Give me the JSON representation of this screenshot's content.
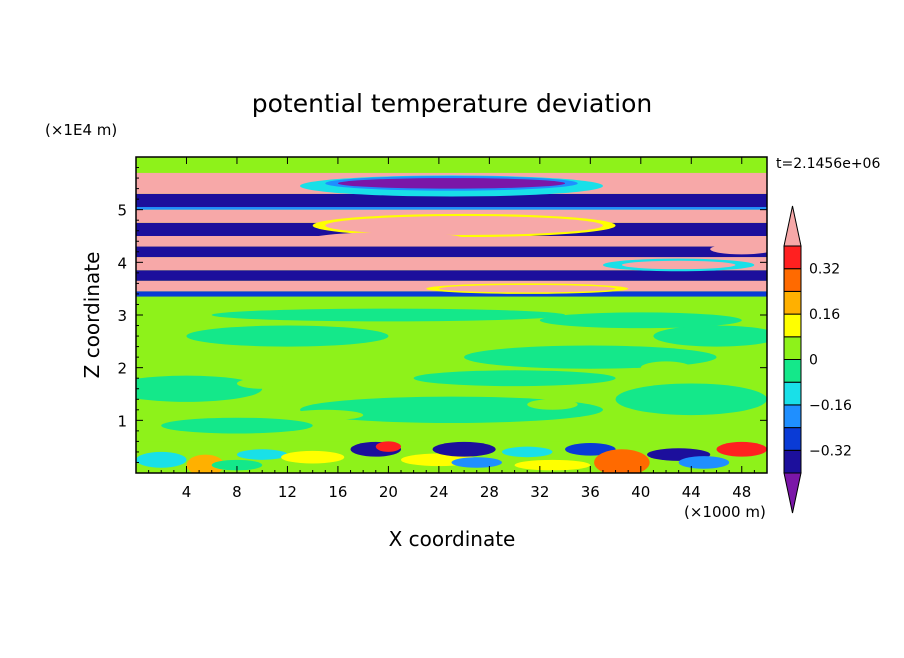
{
  "chart_data": {
    "type": "heatmap",
    "title": "potential temperature deviation",
    "xlabel": "X coordinate",
    "ylabel": "Z coordinate",
    "x_unit": "(×1000 m)",
    "y_unit": "(×1E4 m)",
    "time_label": "t=2.1456e+06",
    "xlim": [
      0,
      50
    ],
    "ylim": [
      0,
      6
    ],
    "x_ticks": [
      4,
      8,
      12,
      16,
      20,
      24,
      28,
      32,
      36,
      40,
      44,
      48
    ],
    "y_ticks": [
      1,
      2,
      3,
      4,
      5
    ],
    "grid": false,
    "colorbar": {
      "position": "right",
      "levels": [
        -0.4,
        -0.32,
        -0.24,
        -0.16,
        -0.08,
        0,
        0.08,
        0.16,
        0.24,
        0.32,
        0.4
      ],
      "labeled_levels": [
        0.32,
        0.16,
        0,
        -0.16,
        -0.32
      ],
      "colors": [
        "#7b16a8",
        "#1c0f9c",
        "#0a3bd6",
        "#1f8fff",
        "#19e0e8",
        "#14e88a",
        "#8ef21a",
        "#ffff00",
        "#ffb000",
        "#ff6a00",
        "#ff2020",
        "#f7a8a8"
      ]
    },
    "bands": [
      {
        "z": [
          0,
          0.6
        ],
        "value": 0.0,
        "note": "surface layer with mixed positive and negative cells"
      },
      {
        "z": [
          0.6,
          3.35
        ],
        "value": 0.04
      },
      {
        "z": [
          3.35,
          3.45
        ],
        "value": -0.32
      },
      {
        "z": [
          3.45,
          3.65
        ],
        "value": 0.4
      },
      {
        "z": [
          3.65,
          3.85
        ],
        "value": -0.4
      },
      {
        "z": [
          3.85,
          4.1
        ],
        "value": 0.4
      },
      {
        "z": [
          4.1,
          4.3
        ],
        "value": -0.4
      },
      {
        "z": [
          4.3,
          4.5
        ],
        "value": 0.4
      },
      {
        "z": [
          4.5,
          4.75
        ],
        "value": -0.4
      },
      {
        "z": [
          4.75,
          5.0
        ],
        "value": 0.4
      },
      {
        "z": [
          5.0,
          5.05
        ],
        "value": -0.24
      },
      {
        "z": [
          5.05,
          5.3
        ],
        "value": -0.4
      },
      {
        "z": [
          5.3,
          5.7
        ],
        "value": 0.4
      },
      {
        "z": [
          5.7,
          6.0
        ],
        "value": 0.04
      }
    ]
  }
}
